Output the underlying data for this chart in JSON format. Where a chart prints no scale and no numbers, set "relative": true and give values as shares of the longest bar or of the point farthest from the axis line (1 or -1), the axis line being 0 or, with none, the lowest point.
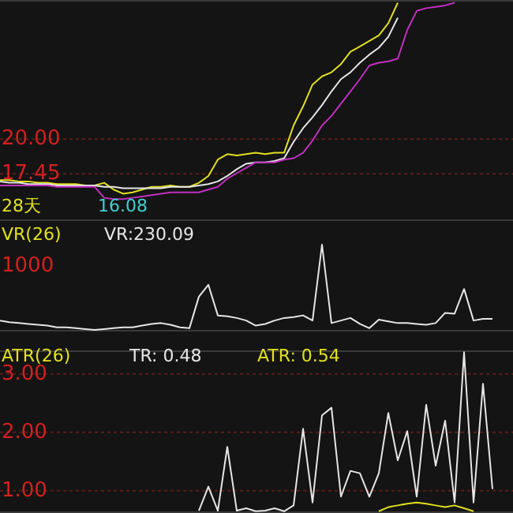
{
  "chart_data": [
    {
      "type": "line",
      "categories": [
        null,
        null,
        null,
        null,
        null,
        null,
        null,
        null,
        null,
        null,
        null,
        null,
        null,
        null,
        null,
        null,
        null,
        null,
        null,
        null,
        null,
        null,
        null,
        null,
        null,
        null,
        null,
        null,
        null,
        null,
        null,
        null,
        null,
        null,
        null,
        null,
        null,
        null,
        null,
        null,
        null,
        null,
        null,
        null,
        null,
        null,
        null,
        null,
        null,
        null,
        null,
        null,
        null,
        null
      ],
      "ylim": [
        14,
        30.2
      ],
      "yticks": [
        {
          "value": 17.45,
          "label": "17.45"
        },
        {
          "value": 20,
          "label": "20.00"
        }
      ],
      "grid": "y",
      "tick_labels": "y",
      "annotations": [
        "28天",
        "16.08"
      ],
      "series": [
        {
          "color": "#e0e020",
          "values": [
            17.0,
            17.0,
            16.9,
            16.9,
            16.8,
            16.8,
            16.7,
            16.7,
            16.7,
            16.6,
            16.6,
            16.8,
            16.3,
            16.0,
            16.1,
            16.3,
            16.5,
            16.5,
            16.6,
            16.5,
            16.5,
            16.8,
            17.3,
            18.5,
            18.9,
            18.8,
            18.9,
            19.0,
            18.9,
            19.0,
            19.0,
            21.0,
            22.4,
            24.0,
            24.6,
            24.9,
            25.5,
            26.4,
            26.8,
            27.2,
            27.6,
            28.5,
            30.0,
            null,
            null,
            null,
            null,
            null,
            null,
            null,
            null,
            null,
            null,
            null
          ]
        },
        {
          "color": "#e6e6e6",
          "values": [
            16.9,
            16.8,
            16.8,
            16.7,
            16.7,
            16.7,
            16.6,
            16.6,
            16.6,
            16.6,
            16.6,
            16.5,
            16.5,
            16.4,
            16.4,
            16.4,
            16.4,
            16.4,
            16.5,
            16.5,
            16.5,
            16.6,
            16.7,
            16.9,
            17.3,
            17.8,
            18.2,
            18.3,
            18.3,
            18.4,
            18.6,
            19.8,
            20.8,
            21.6,
            22.5,
            23.5,
            24.4,
            24.9,
            25.6,
            26.2,
            26.7,
            27.5,
            28.9,
            null,
            null,
            null,
            null,
            null,
            null,
            null,
            null,
            null,
            null,
            null
          ]
        },
        {
          "color": "#c030c0",
          "values": [
            16.6,
            16.6,
            16.6,
            16.6,
            16.6,
            16.6,
            16.5,
            16.5,
            16.5,
            16.5,
            16.5,
            15.7,
            15.6,
            15.6,
            15.7,
            15.8,
            15.9,
            16.0,
            16.1,
            16.1,
            16.1,
            16.1,
            16.3,
            16.5,
            17.1,
            17.5,
            17.9,
            18.3,
            18.3,
            18.3,
            18.5,
            18.6,
            19.0,
            19.9,
            21.0,
            21.7,
            22.6,
            23.5,
            24.4,
            25.4,
            25.6,
            25.7,
            25.9,
            28.0,
            29.4,
            29.6,
            29.7,
            29.8,
            30.0,
            null,
            null,
            null,
            null,
            null
          ]
        }
      ]
    },
    {
      "type": "line",
      "categories": [
        null,
        null,
        null,
        null,
        null,
        null,
        null,
        null,
        null,
        null,
        null,
        null,
        null,
        null,
        null,
        null,
        null,
        null,
        null,
        null,
        null,
        null,
        null,
        null,
        null,
        null,
        null,
        null,
        null,
        null,
        null,
        null,
        null,
        null,
        null,
        null,
        null,
        null,
        null,
        null,
        null,
        null,
        null,
        null,
        null,
        null,
        null,
        null,
        null,
        null,
        null,
        null,
        null,
        null
      ],
      "relative": true,
      "annotations": [
        "VR(26)",
        "VR:230.09",
        "1000"
      ],
      "series": [
        {
          "color": "#e6e6e6",
          "values": [
            0.11,
            0.09,
            0.08,
            0.07,
            0.06,
            0.05,
            0.03,
            0.03,
            0.02,
            0.01,
            0,
            0.01,
            0.02,
            0.03,
            0.03,
            0.05,
            0.07,
            0.08,
            0.06,
            0.03,
            0.02,
            0.39,
            0.53,
            0.17,
            0.16,
            0.14,
            0.11,
            0.05,
            0.07,
            0.11,
            0.14,
            0.15,
            0.17,
            0.11,
            1,
            0.08,
            0.11,
            0.14,
            0.07,
            0.02,
            0.12,
            0.1,
            0.08,
            0.08,
            0.07,
            0.06,
            0.08,
            0.2,
            0.19,
            0.48,
            0.11,
            0.13,
            0.13,
            null
          ]
        }
      ]
    },
    {
      "type": "line",
      "categories": [
        null,
        null,
        null,
        null,
        null,
        null,
        null,
        null,
        null,
        null,
        null,
        null,
        null,
        null,
        null,
        null,
        null,
        null,
        null,
        null,
        null,
        null,
        null,
        null,
        null,
        null,
        null,
        null,
        null,
        null,
        null,
        null,
        null,
        null,
        null,
        null,
        null,
        null,
        null,
        null,
        null,
        null,
        null,
        null,
        null,
        null,
        null,
        null,
        null,
        null,
        null,
        null,
        null,
        null
      ],
      "ylim": [
        0.62,
        3.4
      ],
      "yticks": [
        {
          "value": 1,
          "label": "1.00"
        },
        {
          "value": 2,
          "label": "2.00"
        },
        {
          "value": 3,
          "label": "3.00"
        }
      ],
      "grid": "y",
      "tick_labels": "y",
      "annotations": [
        "ATR(26)",
        "TR: 0.48",
        "ATR: 0.54"
      ],
      "series": [
        {
          "color": "#e6e6e6",
          "values": [
            null,
            null,
            null,
            null,
            null,
            null,
            null,
            null,
            null,
            null,
            null,
            null,
            null,
            null,
            null,
            null,
            null,
            null,
            null,
            null,
            null,
            0.66,
            1.07,
            0.66,
            1.75,
            0.66,
            0.7,
            0.65,
            0.66,
            0.7,
            0.65,
            0.75,
            2.06,
            0.8,
            2.29,
            2.42,
            0.9,
            1.34,
            1.3,
            0.9,
            1.3,
            2.33,
            1.52,
            2.02,
            0.9,
            2.47,
            1.43,
            2.2,
            0.8,
            3.37,
            0.8,
            2.83,
            1.03,
            null
          ]
        },
        {
          "color": "#e0e020",
          "values": [
            null,
            null,
            null,
            null,
            null,
            null,
            null,
            null,
            null,
            null,
            null,
            null,
            null,
            null,
            null,
            null,
            null,
            null,
            null,
            null,
            null,
            null,
            null,
            null,
            null,
            null,
            null,
            null,
            null,
            null,
            null,
            null,
            null,
            null,
            null,
            null,
            null,
            null,
            null,
            null,
            0.65,
            0.72,
            0.75,
            0.78,
            0.8,
            0.78,
            0.75,
            0.72,
            0.75,
            0.7,
            0.65,
            null,
            null,
            null
          ]
        }
      ]
    }
  ]
}
